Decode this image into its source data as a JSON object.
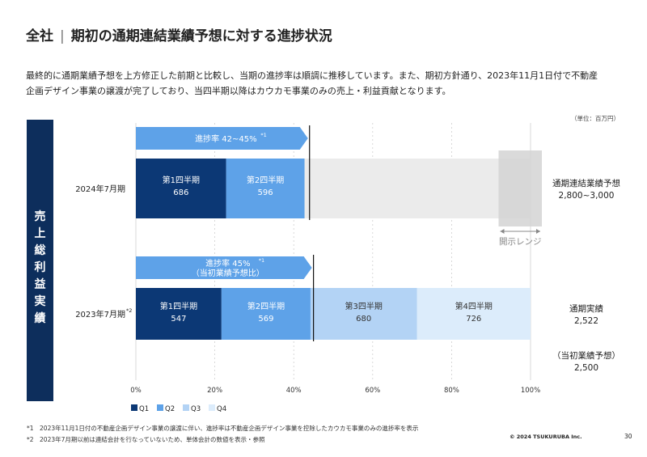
{
  "header": {
    "section": "全社",
    "title": "期初の通期連結業績予想に対する進捗状況"
  },
  "description": {
    "line1": "最終的に通期業績予想を上方修正した前期と比較し、当期の進捗率は順調に推移しています。また、期初方針通り、2023年11月1日付で不動産",
    "line2": "企画デザイン事業の譲渡が完了しており、当四半期以降はカウカモ事業のみの売上・利益貢献となります。"
  },
  "unit_note": "（単位：百万円）",
  "side_label": "売上総利益実績",
  "colors": {
    "navy": "#0d2e5c",
    "q1": "#0c3875",
    "q2": "#5ea2e8",
    "q3": "#b3d3f5",
    "q4": "#dcecfb",
    "remaining": "#ebebeb",
    "range": "#d3d3d3",
    "arrow": "#5ea2e8"
  },
  "chart_data": {
    "type": "bar",
    "orientation": "horizontal",
    "stacked": true,
    "xaxis": {
      "min": 0,
      "max": 100,
      "unit": "%",
      "ticks": [
        "0%",
        "20%",
        "40%",
        "60%",
        "80%",
        "100%"
      ]
    },
    "legend": [
      "Q1",
      "Q2",
      "Q3",
      "Q4"
    ],
    "legend_position": "bottom-left",
    "rows": [
      {
        "label": "2024年7月期",
        "label_sup": "",
        "segments": [
          {
            "name": "第1四半期",
            "value": 686,
            "series": "Q1",
            "label_color": "#ffffff"
          },
          {
            "name": "第2四半期",
            "value": 596,
            "series": "Q2",
            "label_color": "#ffffff"
          }
        ],
        "progress_text": "進捗率 42~45%",
        "progress_sup": "*1",
        "progress_subtext": "",
        "progress_percent": 44,
        "range_percent": [
          96,
          100
        ],
        "range_label": "開示レンジ",
        "right_label": "通期連結業績予想",
        "right_value": "2,800~3,000",
        "right_extra_label": "",
        "right_extra_value": ""
      },
      {
        "label": "2023年7月期",
        "label_sup": "*2",
        "segments": [
          {
            "name": "第1四半期",
            "value": 547,
            "series": "Q1",
            "label_color": "#ffffff"
          },
          {
            "name": "第2四半期",
            "value": 569,
            "series": "Q2",
            "label_color": "#ffffff"
          },
          {
            "name": "第3四半期",
            "value": 680,
            "series": "Q3",
            "label_color": "#333333"
          },
          {
            "name": "第4四半期",
            "value": 726,
            "series": "Q4",
            "label_color": "#333333"
          }
        ],
        "progress_text": "進捗率 45%",
        "progress_sup": "*1",
        "progress_subtext": "（当初業績予想比）",
        "progress_percent": 45,
        "range_percent": null,
        "range_label": "",
        "right_label": "通期実績",
        "right_value": "2,522",
        "right_extra_label": "（当初業績予想）",
        "right_extra_value": "2,500"
      }
    ]
  },
  "footnotes": [
    "*1　2023年11月1日付の不動産企画デザイン事業の譲渡に伴い、進捗率は不動産企画デザイン事業を控除したカウカモ事業のみの進捗率を表示",
    "*2　2023年7月期以前は連結会計を行なっていないため、単体会計の数値を表示・参照"
  ],
  "copyright": "© 2024 TSUKURUBA Inc.",
  "page_number": "30"
}
